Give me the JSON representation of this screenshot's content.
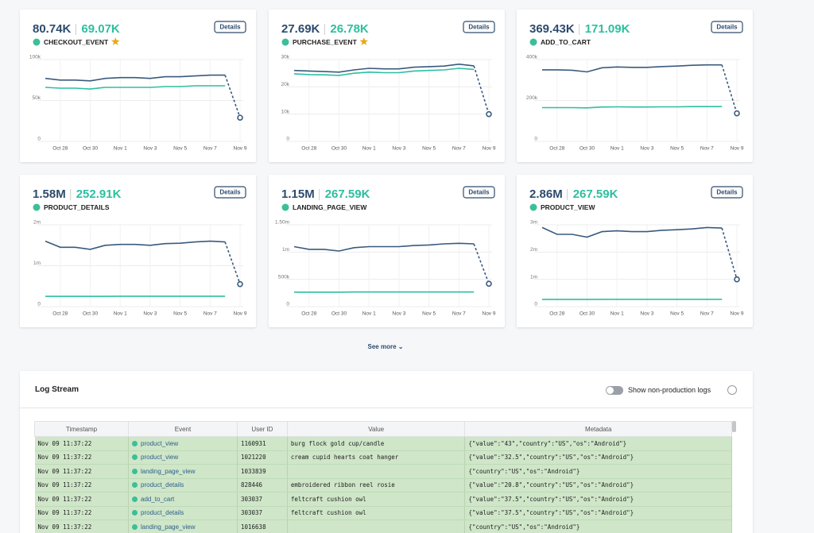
{
  "details_button": "Details",
  "see_more": "See more",
  "chart_data": [
    {
      "type": "line",
      "headline": "80.74K",
      "secondary": "69.07K",
      "title": "CHECKOUT_EVENT",
      "starred": true,
      "categories": [
        null,
        "Oct 28",
        null,
        "Oct 30",
        null,
        "Nov 1",
        null,
        "Nov 3",
        null,
        "Nov 5",
        null,
        "Nov 7",
        null,
        "Nov 9"
      ],
      "ylim": [
        0,
        100000
      ],
      "yticks": [
        0,
        {
          "value": 50000,
          "label": "50k"
        },
        {
          "value": 100000,
          "label": "100k"
        }
      ],
      "grid": true,
      "series": [
        {
          "color": "#3a5a7e",
          "values": [
            77000,
            75000,
            75000,
            74000,
            77000,
            78000,
            78000,
            77000,
            79000,
            79000,
            80000,
            81000,
            81000,
            29000
          ]
        },
        {
          "color": "#2dbf9f",
          "values": [
            66000,
            65000,
            65000,
            64000,
            66000,
            66000,
            66000,
            66000,
            67000,
            67000,
            68000,
            68000,
            68000,
            null
          ]
        }
      ]
    },
    {
      "type": "line",
      "headline": "27.69K",
      "secondary": "26.78K",
      "title": "PURCHASE_EVENT",
      "starred": true,
      "categories": [
        null,
        "Oct 28",
        null,
        "Oct 30",
        null,
        "Nov 1",
        null,
        "Nov 3",
        null,
        "Nov 5",
        null,
        "Nov 7",
        null,
        "Nov 9"
      ],
      "ylim": [
        0,
        30000
      ],
      "yticks": [
        0,
        {
          "value": 10000,
          "label": "10k"
        },
        {
          "value": 20000,
          "label": "20k"
        },
        {
          "value": 30000,
          "label": "30k"
        }
      ],
      "grid": true,
      "series": [
        {
          "color": "#3a5a7e",
          "values": [
            26000,
            25800,
            25600,
            25400,
            26200,
            26800,
            26600,
            26600,
            27200,
            27400,
            27600,
            28300,
            27700,
            10000
          ]
        },
        {
          "color": "#2dbf9f",
          "values": [
            24800,
            24500,
            24400,
            24200,
            25000,
            25400,
            25200,
            25200,
            25800,
            26000,
            26200,
            26800,
            26400,
            null
          ]
        }
      ]
    },
    {
      "type": "line",
      "headline": "369.43K",
      "secondary": "171.09K",
      "title": "ADD_TO_CART",
      "starred": false,
      "categories": [
        null,
        "Oct 28",
        null,
        "Oct 30",
        null,
        "Nov 1",
        null,
        "Nov 3",
        null,
        "Nov 5",
        null,
        "Nov 7",
        null,
        "Nov 9"
      ],
      "ylim": [
        0,
        400000
      ],
      "yticks": [
        0,
        {
          "value": 200000,
          "label": "200k"
        },
        {
          "value": 400000,
          "label": "400k"
        }
      ],
      "grid": true,
      "series": [
        {
          "color": "#3a5a7e",
          "values": [
            350000,
            350000,
            348000,
            340000,
            360000,
            364000,
            362000,
            362000,
            366000,
            368000,
            372000,
            374000,
            374000,
            137000
          ]
        },
        {
          "color": "#2dbf9f",
          "values": [
            165000,
            165000,
            165000,
            164000,
            168000,
            169000,
            168000,
            168000,
            169000,
            169000,
            170000,
            170000,
            170000,
            null
          ]
        }
      ]
    },
    {
      "type": "line",
      "headline": "1.58M",
      "secondary": "252.91K",
      "title": "PRODUCT_DETAILS",
      "starred": false,
      "categories": [
        null,
        "Oct 28",
        null,
        "Oct 30",
        null,
        "Nov 1",
        null,
        "Nov 3",
        null,
        "Nov 5",
        null,
        "Nov 7",
        null,
        "Nov 9"
      ],
      "ylim": [
        0,
        2000000
      ],
      "yticks": [
        0,
        {
          "value": 1000000,
          "label": "1m"
        },
        {
          "value": 2000000,
          "label": "2m"
        }
      ],
      "grid": true,
      "series": [
        {
          "color": "#3a5a7e",
          "values": [
            1600000,
            1450000,
            1450000,
            1400000,
            1500000,
            1520000,
            1520000,
            1500000,
            1540000,
            1550000,
            1580000,
            1600000,
            1580000,
            550000
          ]
        },
        {
          "color": "#2dbf9f",
          "values": [
            250000,
            250000,
            250000,
            250000,
            250000,
            255000,
            255000,
            255000,
            255000,
            255000,
            255000,
            255000,
            255000,
            null
          ]
        }
      ]
    },
    {
      "type": "line",
      "headline": "1.15M",
      "secondary": "267.59K",
      "title": "LANDING_PAGE_VIEW",
      "starred": false,
      "categories": [
        null,
        "Oct 28",
        null,
        "Oct 30",
        null,
        "Nov 1",
        null,
        "Nov 3",
        null,
        "Nov 5",
        null,
        "Nov 7",
        null,
        "Nov 9"
      ],
      "ylim": [
        0,
        1500000
      ],
      "yticks": [
        0,
        {
          "value": 500000,
          "label": "500k"
        },
        {
          "value": 1000000,
          "label": "1m"
        },
        {
          "value": 1500000,
          "label": "1.50m"
        }
      ],
      "grid": true,
      "series": [
        {
          "color": "#3a5a7e",
          "values": [
            1100000,
            1050000,
            1050000,
            1020000,
            1080000,
            1100000,
            1100000,
            1100000,
            1120000,
            1130000,
            1150000,
            1160000,
            1150000,
            420000
          ]
        },
        {
          "color": "#2dbf9f",
          "values": [
            265000,
            265000,
            265000,
            265000,
            268000,
            268000,
            268000,
            268000,
            268000,
            268000,
            268000,
            268000,
            268000,
            null
          ]
        }
      ]
    },
    {
      "type": "line",
      "headline": "2.86M",
      "secondary": "267.59K",
      "title": "PRODUCT_VIEW",
      "starred": false,
      "categories": [
        null,
        "Oct 28",
        null,
        "Oct 30",
        null,
        "Nov 1",
        null,
        "Nov 3",
        null,
        "Nov 5",
        null,
        "Nov 7",
        null,
        "Nov 9"
      ],
      "ylim": [
        0,
        3000000
      ],
      "yticks": [
        0,
        {
          "value": 1000000,
          "label": "1m"
        },
        {
          "value": 2000000,
          "label": "2m"
        },
        {
          "value": 3000000,
          "label": "3m"
        }
      ],
      "grid": true,
      "series": [
        {
          "color": "#3a5a7e",
          "values": [
            2900000,
            2650000,
            2650000,
            2550000,
            2750000,
            2780000,
            2750000,
            2750000,
            2800000,
            2820000,
            2850000,
            2900000,
            2880000,
            1000000
          ]
        },
        {
          "color": "#2dbf9f",
          "values": [
            265000,
            265000,
            265000,
            265000,
            268000,
            268000,
            268000,
            268000,
            268000,
            268000,
            268000,
            268000,
            268000,
            null
          ]
        }
      ]
    }
  ],
  "log_stream": {
    "title": "Log Stream",
    "toggle_label": "Show non-production logs",
    "table": {
      "columns": [
        "Timestamp",
        "Event",
        "User ID",
        "Value",
        "Metadata"
      ],
      "rows": [
        [
          "Nov 09 11:37:22",
          "product_view",
          "1160931",
          "burg flock gold cup/candle",
          "{\"value\":\"43\",\"country\":\"US\",\"os\":\"Android\"}"
        ],
        [
          "Nov 09 11:37:22",
          "product_view",
          "1021220",
          "cream cupid hearts coat hanger",
          "{\"value\":\"32.5\",\"country\":\"US\",\"os\":\"Android\"}"
        ],
        [
          "Nov 09 11:37:22",
          "landing_page_view",
          "1033839",
          null,
          "{\"country\":\"US\",\"os\":\"Android\"}"
        ],
        [
          "Nov 09 11:37:22",
          "product_details",
          "828446",
          "embroidered ribbon reel rosie",
          "{\"value\":\"20.8\",\"country\":\"US\",\"os\":\"Android\"}"
        ],
        [
          "Nov 09 11:37:22",
          "add_to_cart",
          "303037",
          "feltcraft cushion owl",
          "{\"value\":\"37.5\",\"country\":\"US\",\"os\":\"Android\"}"
        ],
        [
          "Nov 09 11:37:22",
          "product_details",
          "303037",
          "feltcraft cushion owl",
          "{\"value\":\"37.5\",\"country\":\"US\",\"os\":\"Android\"}"
        ],
        [
          "Nov 09 11:37:22",
          "landing_page_view",
          "1016638",
          null,
          "{\"country\":\"US\",\"os\":\"Android\"}"
        ]
      ]
    }
  }
}
